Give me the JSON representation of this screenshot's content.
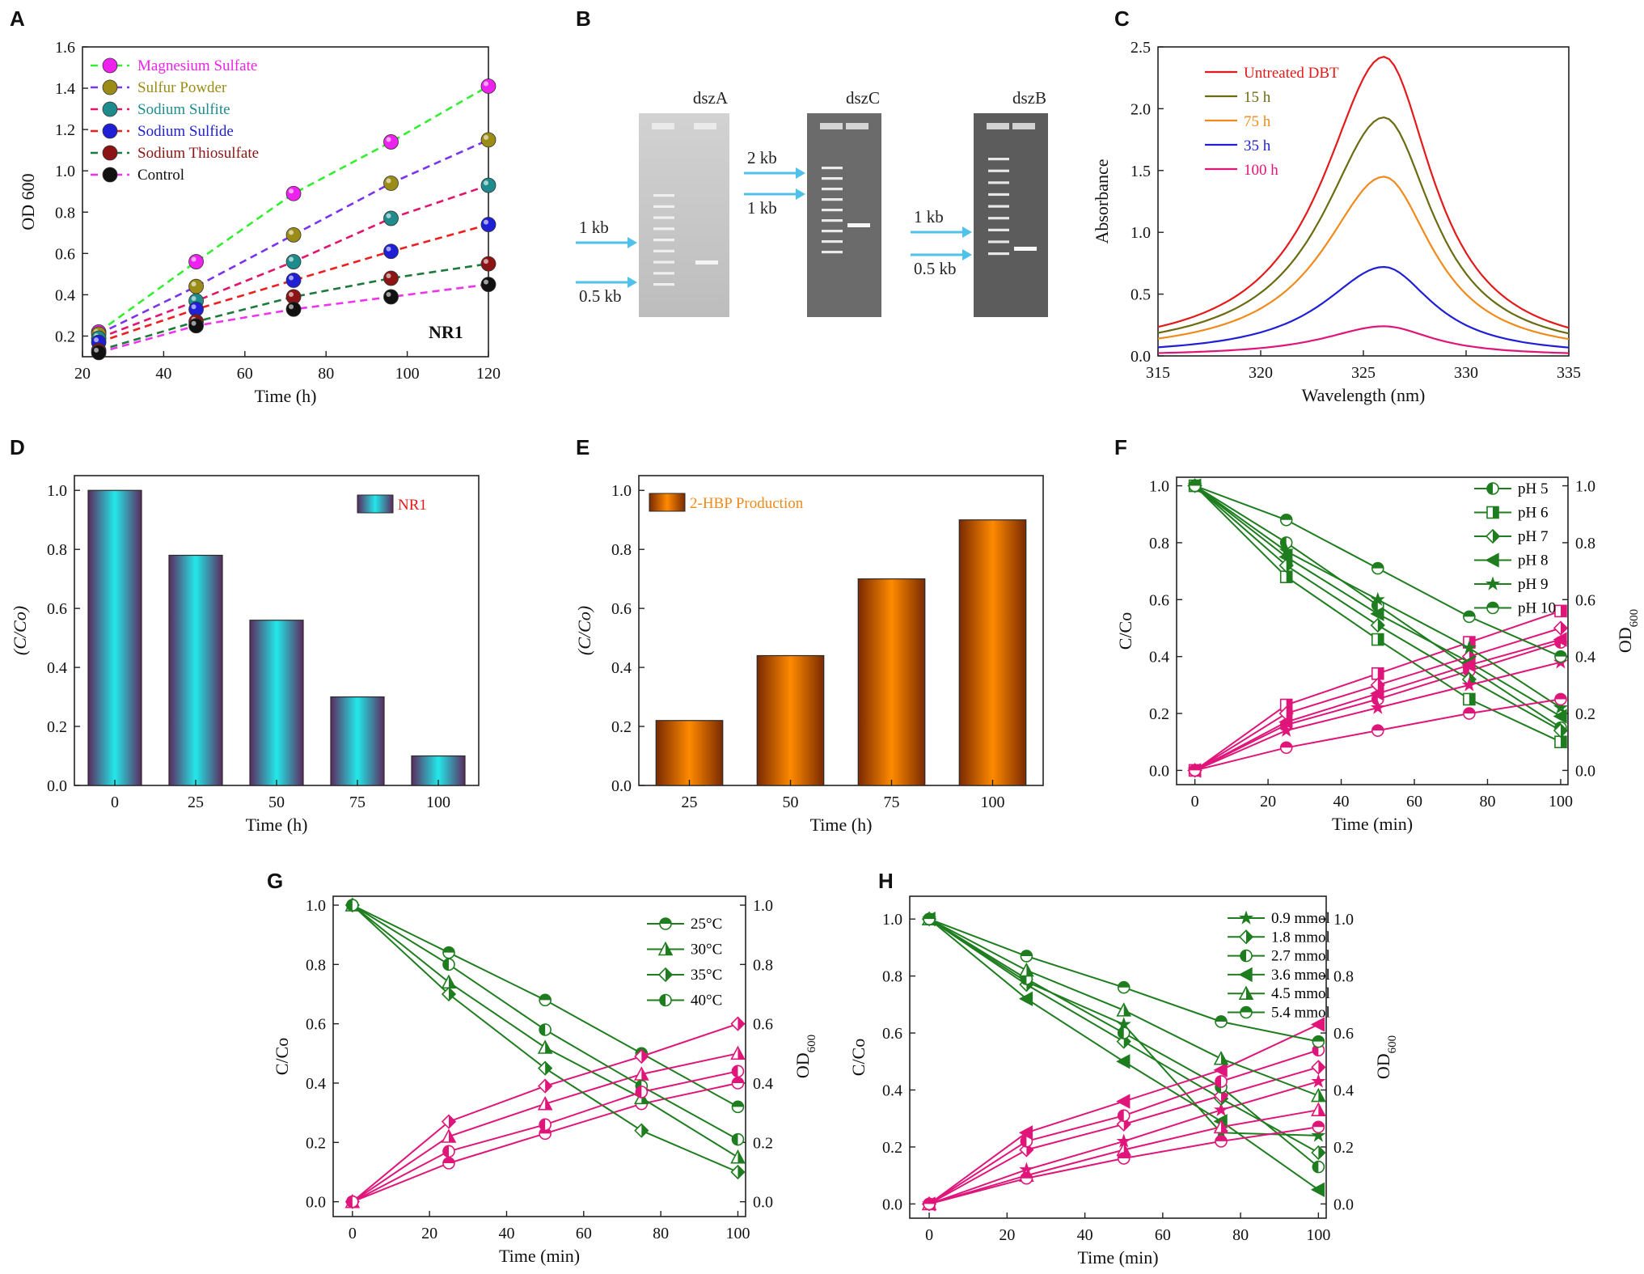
{
  "colors": {
    "green": "#1e7d1e",
    "pink": "#e0157a",
    "arrow": "#4fc1ea",
    "cyan": "#22e8ea",
    "purple": "#5c2a5e",
    "orange": "#ff8a00",
    "brown": "#7a2a00"
  },
  "chart_data": [
    {
      "panel": "A",
      "type": "line",
      "xlabel": "Time (h)",
      "ylabel": "OD 600",
      "xlim": [
        20,
        120
      ],
      "ylim": [
        0.1,
        1.6
      ],
      "xticks": [
        20,
        40,
        60,
        80,
        100,
        120
      ],
      "yticks": [
        0.2,
        0.4,
        0.6,
        0.8,
        1.0,
        1.2,
        1.4,
        1.6
      ],
      "annotation": "NR1",
      "x": [
        24,
        48,
        72,
        96,
        120
      ],
      "series": [
        {
          "name": "Magnesium Sulfate",
          "color": "#ee22ee",
          "line": "#33ee33",
          "values": [
            0.22,
            0.56,
            0.89,
            1.14,
            1.41
          ]
        },
        {
          "name": "Sulfur Powder",
          "color": "#9a8c16",
          "line": "#7a33ee",
          "values": [
            0.21,
            0.44,
            0.69,
            0.94,
            1.15
          ]
        },
        {
          "name": "Sodium Sulfite",
          "color": "#1e8c8c",
          "line": "#e0156e",
          "values": [
            0.19,
            0.37,
            0.56,
            0.77,
            0.93
          ]
        },
        {
          "name": "Sodium Sulfide",
          "color": "#1f1fd6",
          "line": "#ee1f1f",
          "values": [
            0.17,
            0.33,
            0.47,
            0.61,
            0.74
          ]
        },
        {
          "name": "Sodium Thiosulfate",
          "color": "#8c1414",
          "line": "#1e7a3c",
          "values": [
            0.13,
            0.27,
            0.39,
            0.48,
            0.55
          ]
        },
        {
          "name": "Control",
          "color": "#111111",
          "line": "#ee33ee",
          "values": [
            0.12,
            0.25,
            0.33,
            0.39,
            0.45
          ]
        }
      ]
    },
    {
      "panel": "B",
      "type": "gel",
      "gels": [
        {
          "title": "dszA",
          "markers": [
            "1 kb",
            "0.5 kb"
          ]
        },
        {
          "title": "dszC",
          "markers": [
            "2 kb",
            "1 kb"
          ]
        },
        {
          "title": "dszB",
          "markers": [
            "1 kb",
            "0.5 kb"
          ]
        }
      ]
    },
    {
      "panel": "C",
      "type": "line",
      "xlabel": "Wavelength (nm)",
      "ylabel": "Absorbance",
      "xlim": [
        315,
        335
      ],
      "ylim": [
        0,
        2.5
      ],
      "xticks": [
        315,
        320,
        325,
        330,
        335
      ],
      "yticks": [
        0.0,
        0.5,
        1.0,
        1.5,
        2.0,
        2.5
      ],
      "peak_x": 326,
      "series": [
        {
          "name": "Untreated DBT",
          "color": "#e41a1a",
          "peak": 2.42
        },
        {
          "name": "15 h",
          "color": "#6b6b12",
          "peak": 1.93
        },
        {
          "name": "75 h",
          "color": "#f08a1a",
          "peak": 1.45
        },
        {
          "name": "35 h",
          "color": "#1f1fd6",
          "peak": 0.72
        },
        {
          "name": "100 h",
          "color": "#e0157a",
          "peak": 0.24
        }
      ]
    },
    {
      "panel": "D",
      "type": "bar",
      "xlabel": "Time (h)",
      "ylabel": "(C/Co)",
      "ylim": [
        0,
        1.05
      ],
      "yticks": [
        0.0,
        0.2,
        0.4,
        0.6,
        0.8,
        1.0
      ],
      "categories": [
        "0",
        "25",
        "50",
        "75",
        "100"
      ],
      "values": [
        1.0,
        0.78,
        0.56,
        0.3,
        0.1
      ],
      "legend": "NR1"
    },
    {
      "panel": "E",
      "type": "bar",
      "xlabel": "Time (h)",
      "ylabel": "(C/Co)",
      "ylim": [
        0,
        1.05
      ],
      "yticks": [
        0.0,
        0.2,
        0.4,
        0.6,
        0.8,
        1.0
      ],
      "categories": [
        "25",
        "50",
        "75",
        "100"
      ],
      "values": [
        0.22,
        0.44,
        0.7,
        0.9
      ],
      "legend": "2-HBP Production"
    },
    {
      "panel": "F",
      "type": "line",
      "xlabel": "Time (min)",
      "ylabel": "C/Co",
      "ylabel_right": "OD",
      "ylabel_right_sub": "600",
      "xlim": [
        -5,
        102
      ],
      "ylim": [
        -0.05,
        1.03
      ],
      "xticks": [
        0,
        20,
        40,
        60,
        80,
        100
      ],
      "yticks": [
        0.0,
        0.2,
        0.4,
        0.6,
        0.8,
        1.0
      ],
      "x": [
        0,
        25,
        50,
        75,
        100
      ],
      "series": [
        {
          "name": "pH 5",
          "marker": "left",
          "decline": [
            1.0,
            0.8,
            0.58,
            0.36,
            0.15
          ],
          "growth": [
            0.0,
            0.16,
            0.25,
            0.35,
            0.45
          ]
        },
        {
          "name": "pH 6",
          "marker": "square",
          "decline": [
            1.0,
            0.68,
            0.46,
            0.25,
            0.1
          ],
          "growth": [
            0.0,
            0.23,
            0.34,
            0.45,
            0.56
          ]
        },
        {
          "name": "pH 7",
          "marker": "diamond",
          "decline": [
            1.0,
            0.72,
            0.51,
            0.32,
            0.14
          ],
          "growth": [
            0.0,
            0.2,
            0.3,
            0.4,
            0.5
          ]
        },
        {
          "name": "pH 8",
          "marker": "triangle-left",
          "decline": [
            1.0,
            0.75,
            0.55,
            0.38,
            0.19
          ],
          "growth": [
            0.0,
            0.17,
            0.27,
            0.37,
            0.46
          ]
        },
        {
          "name": "pH 9",
          "marker": "star",
          "decline": [
            1.0,
            0.77,
            0.6,
            0.43,
            0.22
          ],
          "growth": [
            0.0,
            0.14,
            0.22,
            0.3,
            0.38
          ]
        },
        {
          "name": "pH 10",
          "marker": "circle",
          "decline": [
            1.0,
            0.88,
            0.71,
            0.54,
            0.4
          ],
          "growth": [
            0.0,
            0.08,
            0.14,
            0.2,
            0.25
          ]
        }
      ]
    },
    {
      "panel": "G",
      "type": "line",
      "xlabel": "Time (min)",
      "ylabel": "C/Co",
      "ylabel_right": "OD",
      "ylabel_right_sub": "600",
      "xlim": [
        -5,
        102
      ],
      "ylim": [
        -0.05,
        1.03
      ],
      "xticks": [
        0,
        20,
        40,
        60,
        80,
        100
      ],
      "yticks": [
        0.0,
        0.2,
        0.4,
        0.6,
        0.8,
        1.0
      ],
      "x": [
        0,
        25,
        50,
        75,
        100
      ],
      "series": [
        {
          "name": "25°C",
          "marker": "circle",
          "decline": [
            1.0,
            0.84,
            0.68,
            0.5,
            0.32
          ],
          "growth": [
            0.0,
            0.13,
            0.23,
            0.33,
            0.4
          ]
        },
        {
          "name": "30°C",
          "marker": "triangle",
          "decline": [
            1.0,
            0.74,
            0.52,
            0.35,
            0.15
          ],
          "growth": [
            0.0,
            0.22,
            0.33,
            0.43,
            0.5
          ]
        },
        {
          "name": "35°C",
          "marker": "diamond",
          "decline": [
            1.0,
            0.7,
            0.45,
            0.24,
            0.1
          ],
          "growth": [
            0.0,
            0.27,
            0.39,
            0.49,
            0.6
          ]
        },
        {
          "name": "40°C",
          "marker": "left",
          "decline": [
            1.0,
            0.8,
            0.58,
            0.39,
            0.21
          ],
          "growth": [
            0.0,
            0.17,
            0.26,
            0.37,
            0.44
          ]
        }
      ]
    },
    {
      "panel": "H",
      "type": "line",
      "xlabel": "Time (min)",
      "ylabel": "C/Co",
      "ylabel_right": "OD",
      "ylabel_right_sub": "600",
      "xlim": [
        -5,
        102
      ],
      "ylim": [
        -0.05,
        1.08
      ],
      "xticks": [
        0,
        20,
        40,
        60,
        80,
        100
      ],
      "yticks": [
        0.0,
        0.2,
        0.4,
        0.6,
        0.8,
        1.0
      ],
      "x": [
        0,
        25,
        50,
        75,
        100
      ],
      "series": [
        {
          "name": "0.9 mmol",
          "marker": "star",
          "decline": [
            1.0,
            0.78,
            0.63,
            0.25,
            0.24
          ],
          "growth": [
            0.0,
            0.12,
            0.22,
            0.33,
            0.43
          ]
        },
        {
          "name": "1.8 mmol",
          "marker": "diamond",
          "decline": [
            1.0,
            0.77,
            0.57,
            0.37,
            0.18
          ],
          "growth": [
            0.0,
            0.19,
            0.28,
            0.38,
            0.48
          ]
        },
        {
          "name": "2.7 mmol",
          "marker": "left",
          "decline": [
            1.0,
            0.79,
            0.6,
            0.41,
            0.13
          ],
          "growth": [
            0.0,
            0.22,
            0.31,
            0.43,
            0.54
          ]
        },
        {
          "name": "3.6 mmol",
          "marker": "triangle-left",
          "decline": [
            1.0,
            0.72,
            0.5,
            0.29,
            0.05
          ],
          "growth": [
            0.0,
            0.25,
            0.36,
            0.47,
            0.63
          ]
        },
        {
          "name": "4.5 mmol",
          "marker": "triangle",
          "decline": [
            1.0,
            0.82,
            0.68,
            0.51,
            0.38
          ],
          "growth": [
            0.0,
            0.1,
            0.19,
            0.27,
            0.33
          ]
        },
        {
          "name": "5.4 mmol",
          "marker": "circle",
          "decline": [
            1.0,
            0.87,
            0.76,
            0.64,
            0.57
          ],
          "growth": [
            0.0,
            0.09,
            0.16,
            0.22,
            0.27
          ]
        }
      ]
    }
  ]
}
